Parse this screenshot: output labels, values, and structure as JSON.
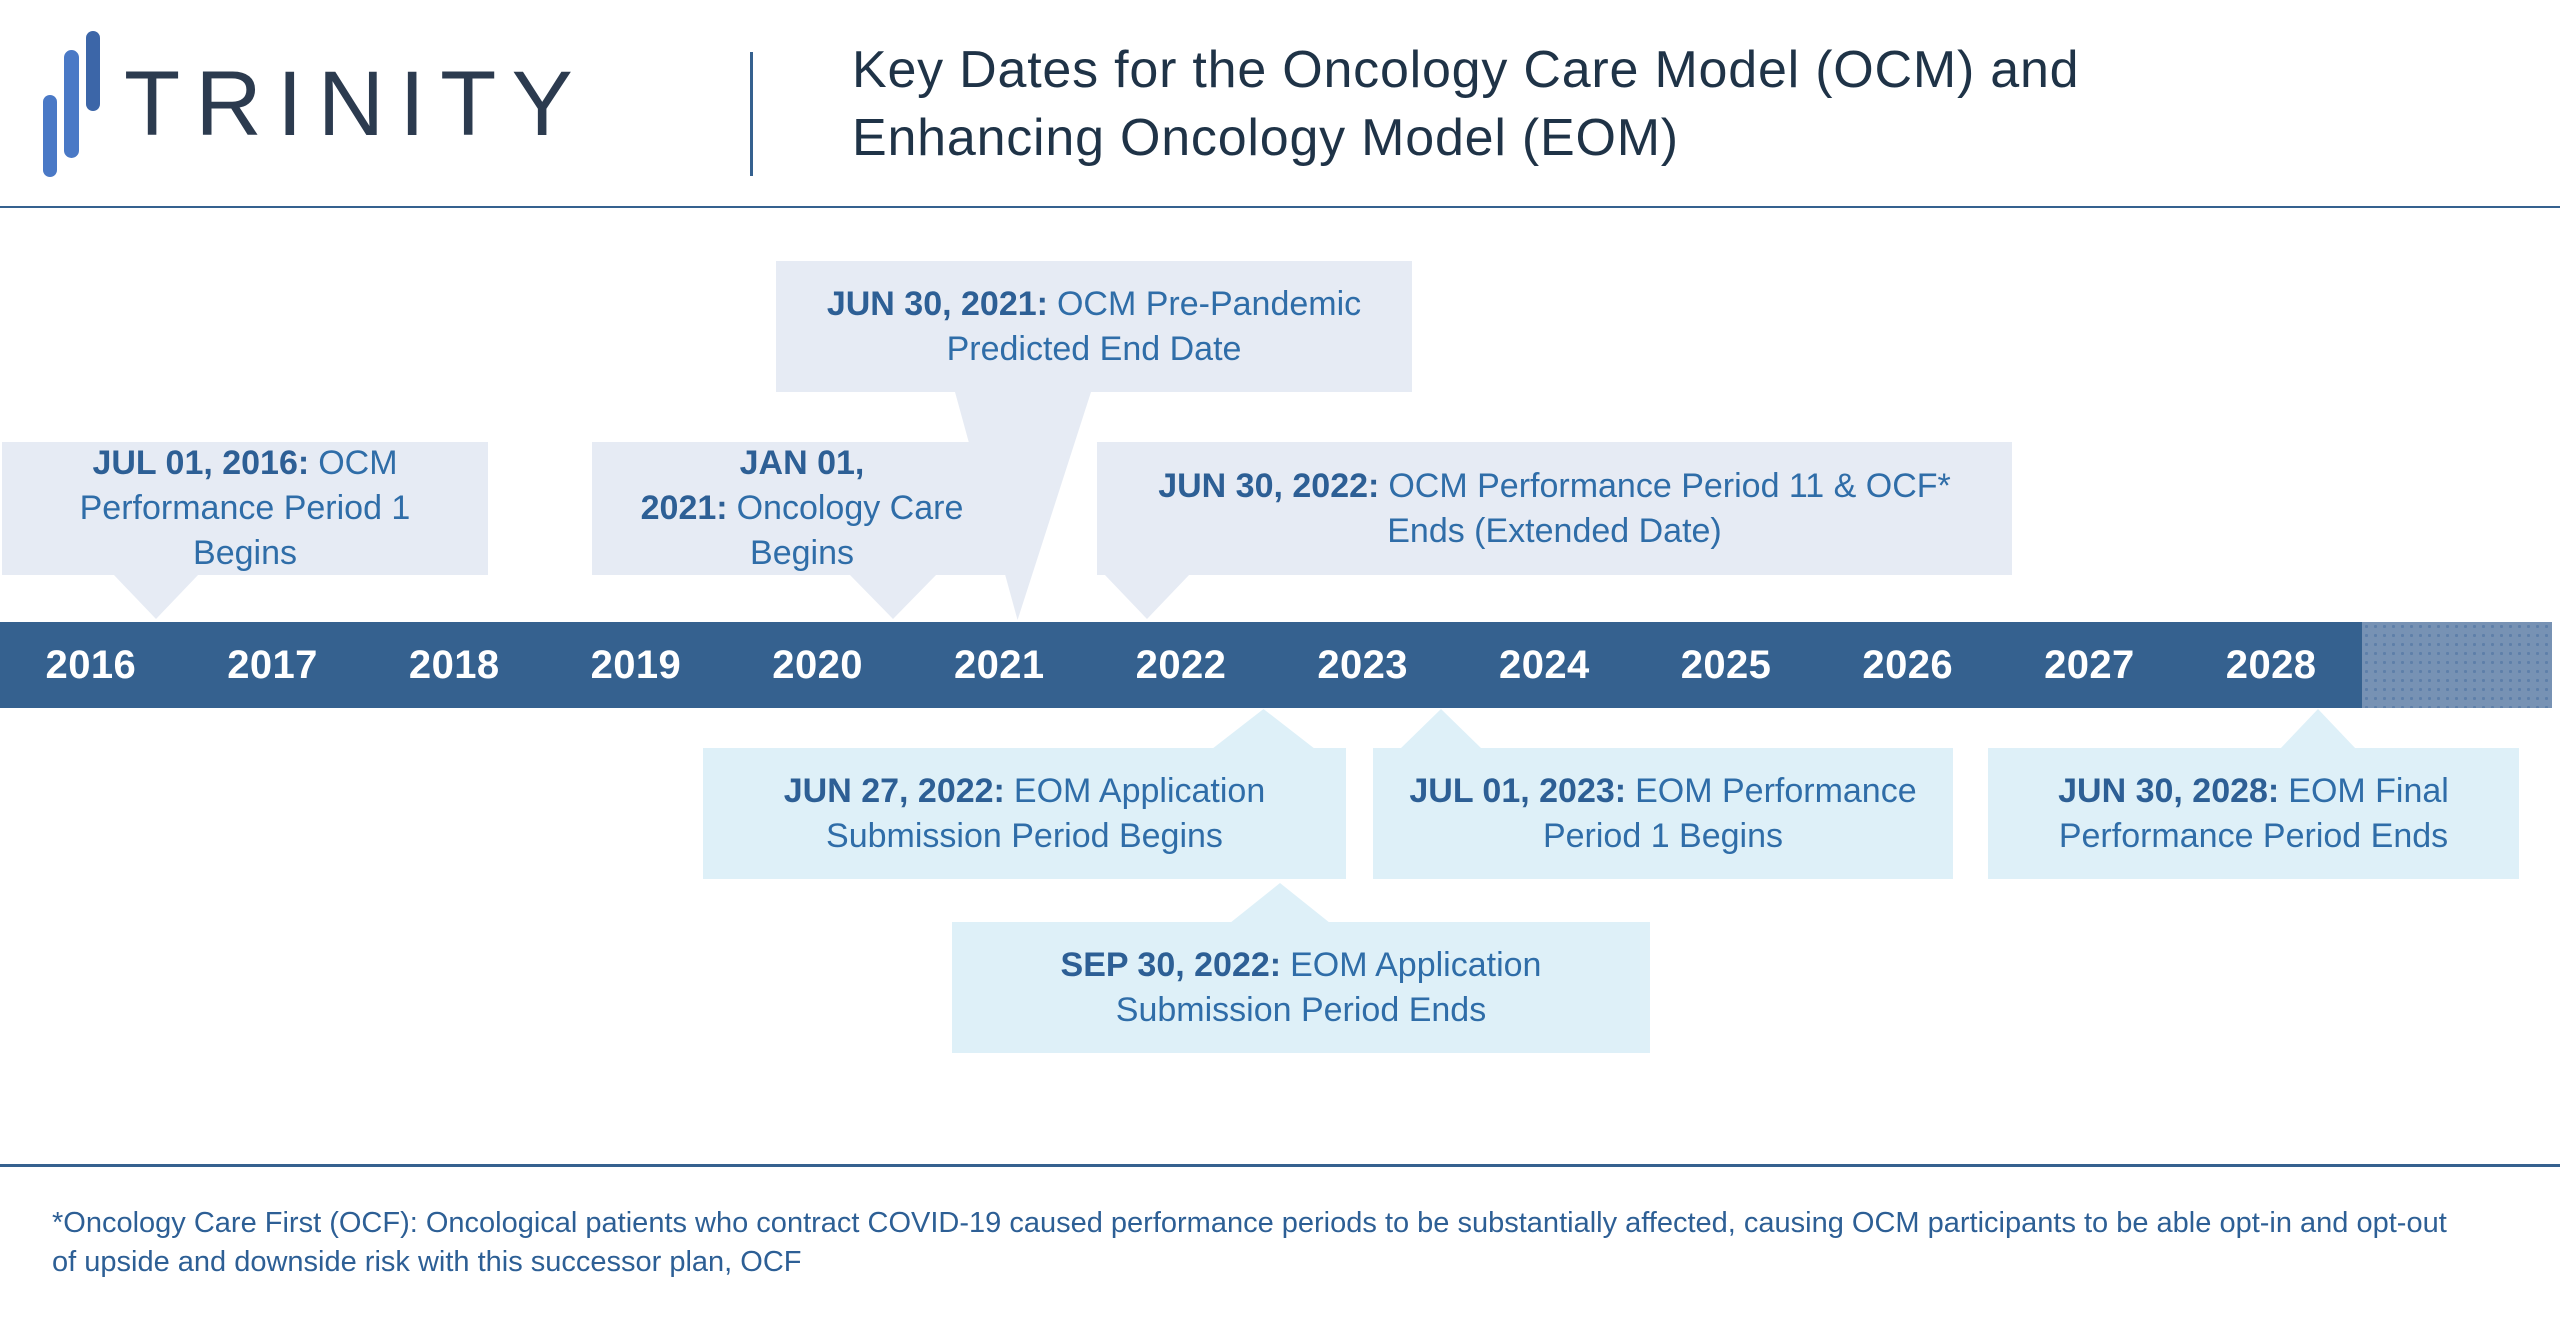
{
  "header": {
    "brand": "TRINITY",
    "title_line1": "Key Dates for the Oncology Care Model (OCM) and",
    "title_line2": "Enhancing Oncology Model (EOM)"
  },
  "timeline": {
    "years": [
      "2016",
      "2017",
      "2018",
      "2019",
      "2020",
      "2021",
      "2022",
      "2023",
      "2024",
      "2025",
      "2026",
      "2027",
      "2028"
    ]
  },
  "events": {
    "ocm_prepandemic_end": {
      "date": "JUN 30, 2021:",
      "text": "OCM Pre-Pandemic Predicted End Date"
    },
    "ocm_pp1_begins": {
      "date": "JUL 01, 2016:",
      "text": "OCM Performance Period 1 Begins"
    },
    "oncology_care_begins": {
      "date": "JAN 01, 2021:",
      "text": "Oncology Care Begins"
    },
    "ocm_pp11_ocf_ends": {
      "date": "JUN 30, 2022:",
      "text": "OCM Performance Period 11 & OCF* Ends (Extended Date)"
    },
    "eom_app_begins": {
      "date": "JUN 27, 2022:",
      "text": "EOM Application Submission Period Begins"
    },
    "eom_pp1_begins": {
      "date": "JUL 01, 2023:",
      "text": "EOM Performance Period 1 Begins"
    },
    "eom_final_ends": {
      "date": "JUN 30, 2028:",
      "text": "EOM Final Performance Period Ends"
    },
    "eom_app_ends": {
      "date": "SEP 30, 2022:",
      "text": "EOM Application Submission Period Ends"
    }
  },
  "footnote": "*Oncology Care First (OCF): Oncological patients who contract COVID-19 caused performance periods to be substantially affected, causing OCM participants to be able opt-in and opt-out of upside and downside risk with this successor plan, OCF",
  "colors": {
    "bar": "#35618f",
    "bar_extension": "#7792b4",
    "box_above": "#e6ebf4",
    "box_below": "#def0f8",
    "date_text": "#2d5f95",
    "body_text": "#2f6da8",
    "title_text": "#1f3347",
    "brand_text": "#2c3b4f",
    "logo_blue": "#4a79c6",
    "logo_dark_blue": "#3c66a8"
  }
}
